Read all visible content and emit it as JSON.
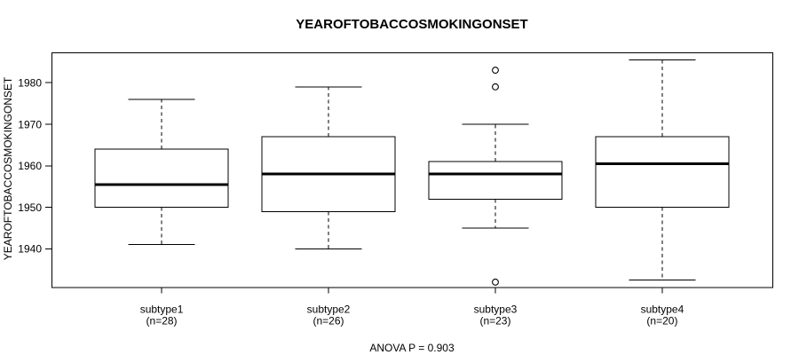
{
  "figure": {
    "background": "#ffffff",
    "line_color": "#000000",
    "box_fill": "#ffffff"
  },
  "chart_data": {
    "type": "boxplot",
    "title": "YEAROFTOBACCOSMOKINGONSET",
    "ylabel": "YEAROFTOBACCOSMOKINGONSET",
    "xlabel": "",
    "footnote": "ANOVA P = 0.903",
    "grid": false,
    "legend": false,
    "ylim": [
      1930.8,
      1987.3
    ],
    "y_ticks": [
      1940,
      1950,
      1960,
      1970,
      1980
    ],
    "groups": [
      {
        "label": "subtype1",
        "n_label": "(n=28)",
        "whisker_low": 1941,
        "q1": 1950,
        "median": 1955.5,
        "q3": 1964,
        "whisker_high": 1976,
        "outliers": []
      },
      {
        "label": "subtype2",
        "n_label": "(n=26)",
        "whisker_low": 1940,
        "q1": 1949,
        "median": 1958,
        "q3": 1967,
        "whisker_high": 1979,
        "outliers": []
      },
      {
        "label": "subtype3",
        "n_label": "(n=23)",
        "whisker_low": 1945,
        "q1": 1952,
        "median": 1958,
        "q3": 1961,
        "whisker_high": 1970,
        "outliers": [
          1983,
          1979,
          1932
        ]
      },
      {
        "label": "subtype4",
        "n_label": "(n=20)",
        "whisker_low": 1932.5,
        "q1": 1950,
        "median": 1960.5,
        "q3": 1967,
        "whisker_high": 1985.5,
        "outliers": []
      }
    ]
  }
}
